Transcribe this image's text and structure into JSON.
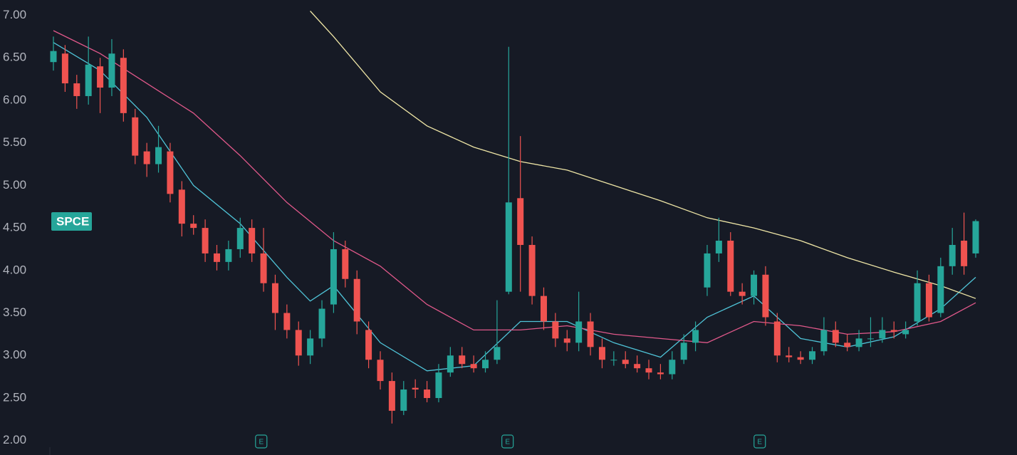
{
  "chart_data": {
    "type": "candlestick",
    "ticker": "SPCE",
    "up_color": "#26a69a",
    "down_color": "#ef5350",
    "ylim": [
      1.83,
      7.18
    ],
    "yticks": [
      {
        "value": 2.0,
        "label": "2.00"
      },
      {
        "value": 2.5,
        "label": "2.50"
      },
      {
        "value": 3.0,
        "label": "3.00"
      },
      {
        "value": 3.5,
        "label": "3.50"
      },
      {
        "value": 4.0,
        "label": "4.00"
      },
      {
        "value": 4.5,
        "label": "4.50"
      },
      {
        "value": 5.0,
        "label": "5.00"
      },
      {
        "value": 5.5,
        "label": "5.50"
      },
      {
        "value": 6.0,
        "label": "6.00"
      },
      {
        "value": 6.5,
        "label": "6.50"
      },
      {
        "value": 7.0,
        "label": "7.00"
      }
    ],
    "open": [
      6.45,
      6.55,
      6.2,
      6.05,
      6.4,
      6.15,
      6.5,
      5.8,
      5.4,
      5.25,
      5.4,
      4.95,
      4.55,
      4.5,
      4.2,
      4.1,
      4.25,
      4.5,
      4.2,
      3.85,
      3.5,
      3.3,
      3.0,
      3.2,
      3.6,
      4.25,
      3.9,
      3.3,
      2.95,
      2.7,
      2.35,
      2.62,
      2.6,
      2.5,
      2.8,
      3.0,
      2.9,
      2.85,
      2.95,
      3.75,
      4.85,
      4.3,
      3.7,
      3.4,
      3.2,
      3.15,
      3.4,
      3.1,
      2.95,
      2.95,
      2.9,
      2.85,
      2.8,
      2.78,
      2.95,
      3.15,
      3.8,
      4.2,
      4.35,
      3.75,
      3.7,
      3.95,
      3.4,
      3.0,
      2.98,
      2.95,
      3.05,
      3.3,
      3.15,
      3.1,
      3.2,
      3.2,
      3.3,
      3.25,
      3.4,
      3.85,
      3.5,
      4.05,
      4.35,
      4.2
    ],
    "high": [
      6.75,
      6.65,
      6.3,
      6.75,
      6.5,
      6.72,
      6.6,
      5.9,
      5.5,
      5.7,
      5.5,
      5.05,
      4.65,
      4.6,
      4.3,
      4.35,
      4.62,
      4.6,
      4.5,
      3.95,
      3.6,
      3.4,
      3.3,
      3.65,
      4.45,
      4.35,
      4.0,
      3.4,
      3.05,
      2.8,
      2.7,
      2.72,
      2.7,
      2.9,
      3.1,
      3.1,
      3.0,
      3.05,
      3.65,
      6.63,
      5.58,
      4.4,
      3.8,
      3.5,
      3.3,
      3.75,
      3.5,
      3.2,
      3.05,
      3.05,
      3.0,
      2.95,
      2.9,
      3.05,
      3.25,
      3.4,
      4.3,
      4.62,
      4.45,
      3.85,
      4.0,
      4.05,
      3.5,
      3.1,
      3.05,
      3.1,
      3.45,
      3.4,
      3.25,
      3.3,
      3.45,
      3.45,
      3.4,
      3.4,
      4.0,
      3.95,
      4.15,
      4.5,
      4.68,
      4.6
    ],
    "low": [
      6.35,
      6.1,
      5.9,
      5.95,
      5.85,
      6.05,
      5.75,
      5.25,
      5.1,
      5.15,
      4.8,
      4.4,
      4.42,
      4.1,
      4.0,
      4.0,
      4.15,
      4.1,
      3.75,
      3.3,
      3.2,
      2.88,
      2.9,
      3.1,
      3.5,
      3.8,
      3.25,
      2.85,
      2.6,
      2.2,
      2.3,
      2.5,
      2.45,
      2.45,
      2.75,
      2.85,
      2.8,
      2.8,
      2.9,
      3.72,
      3.75,
      3.6,
      3.3,
      3.1,
      3.05,
      3.05,
      3.0,
      2.85,
      2.88,
      2.85,
      2.8,
      2.72,
      2.72,
      2.72,
      2.9,
      3.05,
      3.7,
      4.1,
      3.7,
      3.6,
      3.6,
      3.35,
      2.92,
      2.92,
      2.9,
      2.9,
      3.0,
      3.1,
      3.05,
      3.05,
      3.1,
      3.15,
      3.2,
      3.2,
      3.35,
      3.4,
      3.45,
      3.95,
      3.95,
      4.15
    ],
    "close": [
      6.58,
      6.2,
      6.05,
      6.42,
      6.15,
      6.55,
      5.85,
      5.35,
      5.25,
      5.45,
      4.9,
      4.55,
      4.5,
      4.2,
      4.1,
      4.25,
      4.5,
      4.2,
      3.85,
      3.5,
      3.3,
      3.0,
      3.2,
      3.55,
      4.25,
      3.9,
      3.4,
      2.95,
      2.7,
      2.35,
      2.6,
      2.6,
      2.5,
      2.8,
      3.0,
      2.9,
      2.85,
      2.95,
      3.1,
      4.8,
      4.3,
      3.7,
      3.4,
      3.2,
      3.15,
      3.4,
      3.1,
      2.95,
      2.95,
      2.9,
      2.85,
      2.8,
      2.78,
      2.95,
      3.15,
      3.3,
      4.2,
      4.35,
      3.75,
      3.7,
      3.95,
      3.45,
      3.0,
      2.98,
      2.95,
      3.05,
      3.3,
      3.15,
      3.1,
      3.2,
      3.2,
      3.3,
      3.28,
      3.3,
      3.85,
      3.45,
      4.05,
      4.3,
      4.05,
      4.58
    ],
    "lines": [
      {
        "color": "#4fc3d7",
        "x": [
          0,
          4,
          8,
          12,
          16,
          20,
          22,
          24,
          28,
          32,
          36,
          40,
          44,
          48,
          52,
          56,
          60,
          64,
          68,
          72,
          76,
          79
        ],
        "values": [
          6.68,
          6.35,
          5.8,
          5.0,
          4.55,
          3.92,
          3.64,
          3.82,
          3.15,
          2.82,
          2.88,
          3.4,
          3.4,
          3.15,
          2.98,
          3.45,
          3.7,
          3.2,
          3.1,
          3.22,
          3.55,
          3.92
        ]
      },
      {
        "color": "#e0588a",
        "x": [
          0,
          4,
          8,
          12,
          16,
          20,
          24,
          28,
          32,
          36,
          40,
          44,
          48,
          52,
          56,
          60,
          64,
          68,
          72,
          76,
          79
        ],
        "values": [
          6.82,
          6.55,
          6.2,
          5.85,
          5.35,
          4.8,
          4.35,
          4.05,
          3.6,
          3.3,
          3.3,
          3.35,
          3.25,
          3.2,
          3.15,
          3.4,
          3.35,
          3.25,
          3.28,
          3.4,
          3.62
        ]
      },
      {
        "color": "#efe6a6",
        "x": [
          22,
          24,
          28,
          32,
          36,
          40,
          44,
          48,
          52,
          56,
          60,
          64,
          68,
          72,
          76,
          79
        ],
        "values": [
          7.05,
          6.75,
          6.1,
          5.7,
          5.45,
          5.28,
          5.18,
          5.0,
          4.82,
          4.62,
          4.5,
          4.35,
          4.15,
          3.98,
          3.82,
          3.67
        ]
      }
    ],
    "events": [
      {
        "x": 17.8,
        "label": "E"
      },
      {
        "x": 38.9,
        "label": "E"
      },
      {
        "x": 60.5,
        "label": "E"
      }
    ]
  }
}
